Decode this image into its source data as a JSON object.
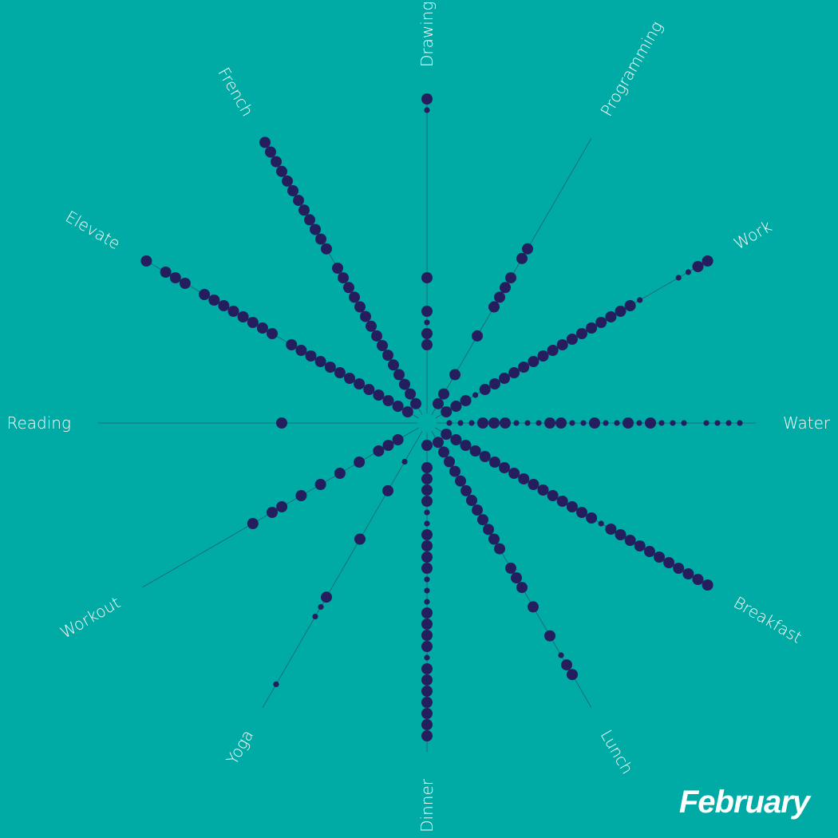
{
  "title": "February",
  "colors": {
    "background": "#00ABA5",
    "dot": "#241E5E",
    "spoke": "#1F5F6F",
    "label": "#ffffff"
  },
  "chart_data": {
    "type": "radial-dot",
    "month": "February",
    "days": 28,
    "value_legend": {
      "0": "none",
      "1": "small dot",
      "2": "large dot"
    },
    "categories": [
      {
        "name": "Water",
        "angle": 0,
        "values": [
          1,
          1,
          1,
          2,
          2,
          2,
          1,
          1,
          1,
          2,
          2,
          1,
          1,
          2,
          1,
          1,
          2,
          1,
          2,
          1,
          1,
          1,
          0,
          1,
          1,
          1,
          1,
          0
        ]
      },
      {
        "name": "Work",
        "angle": -30,
        "values": [
          2,
          2,
          2,
          1,
          2,
          2,
          2,
          2,
          2,
          2,
          2,
          2,
          2,
          2,
          2,
          2,
          2,
          2,
          2,
          2,
          1,
          0,
          0,
          0,
          1,
          1,
          2,
          2
        ]
      },
      {
        "name": "Programming",
        "angle": -60,
        "values": [
          2,
          2,
          0,
          2,
          0,
          0,
          0,
          2,
          0,
          0,
          2,
          2,
          2,
          2,
          0,
          2,
          2,
          0,
          0,
          0,
          0,
          0,
          0,
          0,
          0,
          0,
          0,
          0
        ]
      },
      {
        "name": "Drawing",
        "angle": -90,
        "values": [
          0,
          0,
          0,
          0,
          0,
          2,
          2,
          1,
          2,
          0,
          0,
          2,
          0,
          0,
          0,
          0,
          0,
          0,
          0,
          0,
          0,
          0,
          0,
          0,
          0,
          0,
          1,
          2
        ]
      },
      {
        "name": "French",
        "angle": -120,
        "values": [
          2,
          2,
          2,
          2,
          2,
          2,
          2,
          2,
          2,
          2,
          2,
          2,
          2,
          2,
          2,
          0,
          2,
          2,
          2,
          2,
          2,
          2,
          2,
          2,
          2,
          2,
          2,
          2
        ]
      },
      {
        "name": "Elevate",
        "angle": -150,
        "values": [
          2,
          2,
          2,
          2,
          2,
          2,
          2,
          2,
          2,
          2,
          2,
          2,
          2,
          0,
          2,
          2,
          2,
          2,
          2,
          2,
          2,
          2,
          0,
          2,
          2,
          2,
          0,
          2
        ]
      },
      {
        "name": "Reading",
        "angle": 180,
        "values": [
          0,
          0,
          0,
          0,
          0,
          0,
          0,
          0,
          0,
          0,
          0,
          2,
          0,
          0,
          0,
          0,
          0,
          0,
          0,
          0,
          0,
          0,
          0,
          0,
          0,
          0,
          0,
          0
        ]
      },
      {
        "name": "Workout",
        "angle": 150,
        "values": [
          0,
          2,
          2,
          2,
          0,
          2,
          0,
          2,
          0,
          2,
          0,
          2,
          0,
          2,
          2,
          0,
          2,
          0,
          0,
          0,
          0,
          0,
          0,
          0,
          0,
          0,
          0,
          0
        ]
      },
      {
        "name": "Yoga",
        "angle": 120,
        "values": [
          0,
          0,
          1,
          0,
          0,
          2,
          0,
          0,
          0,
          0,
          2,
          0,
          0,
          0,
          0,
          0,
          2,
          1,
          1,
          0,
          0,
          0,
          0,
          0,
          0,
          1,
          0,
          0
        ]
      },
      {
        "name": "Dinner",
        "angle": 90,
        "values": [
          2,
          0,
          2,
          2,
          2,
          2,
          1,
          1,
          2,
          2,
          2,
          2,
          1,
          1,
          1,
          2,
          2,
          2,
          2,
          1,
          2,
          2,
          2,
          2,
          2,
          2,
          2,
          0
        ]
      },
      {
        "name": "Lunch",
        "angle": 60,
        "values": [
          2,
          2,
          2,
          2,
          2,
          2,
          2,
          2,
          2,
          2,
          2,
          2,
          0,
          2,
          2,
          2,
          0,
          2,
          0,
          0,
          2,
          0,
          1,
          2,
          2,
          0,
          0,
          0
        ]
      },
      {
        "name": "Breakfast",
        "angle": 30,
        "values": [
          2,
          2,
          2,
          2,
          2,
          2,
          2,
          2,
          2,
          2,
          2,
          2,
          2,
          2,
          2,
          2,
          1,
          2,
          2,
          2,
          2,
          2,
          2,
          2,
          2,
          2,
          2,
          2
        ]
      }
    ]
  }
}
